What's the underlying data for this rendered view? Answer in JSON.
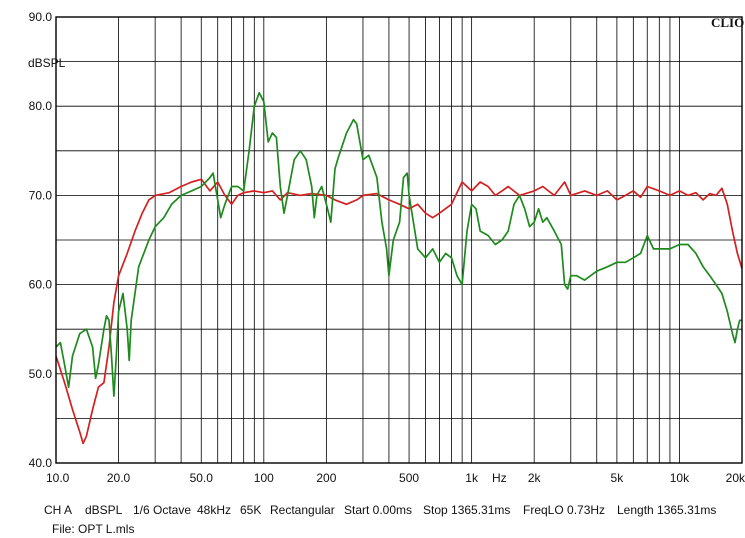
{
  "chart_data": {
    "type": "line",
    "ylabel": "dBSPL",
    "brand": "CLIO",
    "x_scale": "log",
    "xlim": [
      10,
      20000
    ],
    "ylim": [
      40,
      90
    ],
    "grid": true,
    "y_ticks": [
      {
        "value": 40,
        "label": "40.0"
      },
      {
        "value": 50,
        "label": "50.0"
      },
      {
        "value": 60,
        "label": "60.0"
      },
      {
        "value": 70,
        "label": "70.0"
      },
      {
        "value": 80,
        "label": "80.0"
      },
      {
        "value": 90,
        "label": "90.0"
      }
    ],
    "x_ticks": [
      {
        "value": 10,
        "label": "10.0"
      },
      {
        "value": 20,
        "label": "20.0"
      },
      {
        "value": 50,
        "label": "50.0"
      },
      {
        "value": 100,
        "label": "100"
      },
      {
        "value": 200,
        "label": "200"
      },
      {
        "value": 500,
        "label": "500"
      },
      {
        "value": 1000,
        "label": "1k"
      },
      {
        "value": 2000,
        "label": "2k"
      },
      {
        "value": 5000,
        "label": "5k"
      },
      {
        "value": 10000,
        "label": "10k"
      },
      {
        "value": 20000,
        "label": "20k"
      }
    ],
    "x_unit_label": "Hz",
    "series": [
      {
        "color": "#d42020",
        "points": [
          [
            10,
            52
          ],
          [
            11,
            49
          ],
          [
            12,
            46
          ],
          [
            13,
            43.5
          ],
          [
            13.5,
            42.2
          ],
          [
            14,
            43
          ],
          [
            15,
            46
          ],
          [
            16,
            48.5
          ],
          [
            17,
            49
          ],
          [
            18,
            53
          ],
          [
            19,
            58
          ],
          [
            20,
            61
          ],
          [
            22,
            63.5
          ],
          [
            24,
            66
          ],
          [
            26,
            68
          ],
          [
            28,
            69.5
          ],
          [
            30,
            70
          ],
          [
            35,
            70.3
          ],
          [
            40,
            71
          ],
          [
            45,
            71.5
          ],
          [
            50,
            71.8
          ],
          [
            55,
            70.5
          ],
          [
            60,
            71.5
          ],
          [
            65,
            70
          ],
          [
            70,
            69
          ],
          [
            75,
            70
          ],
          [
            80,
            70.3
          ],
          [
            90,
            70.5
          ],
          [
            100,
            70.3
          ],
          [
            110,
            70.5
          ],
          [
            120,
            69.5
          ],
          [
            130,
            70.3
          ],
          [
            150,
            70
          ],
          [
            170,
            70.2
          ],
          [
            200,
            70
          ],
          [
            220,
            69.5
          ],
          [
            250,
            69
          ],
          [
            280,
            69.5
          ],
          [
            300,
            70
          ],
          [
            350,
            70.2
          ],
          [
            400,
            69.5
          ],
          [
            450,
            69
          ],
          [
            500,
            68.5
          ],
          [
            550,
            69
          ],
          [
            600,
            68
          ],
          [
            650,
            67.5
          ],
          [
            700,
            68
          ],
          [
            800,
            69
          ],
          [
            900,
            71.5
          ],
          [
            1000,
            70.5
          ],
          [
            1100,
            71.5
          ],
          [
            1200,
            71
          ],
          [
            1300,
            70
          ],
          [
            1400,
            70.5
          ],
          [
            1500,
            71
          ],
          [
            1700,
            70
          ],
          [
            2000,
            70.5
          ],
          [
            2200,
            71
          ],
          [
            2500,
            70
          ],
          [
            2800,
            71.5
          ],
          [
            3000,
            70
          ],
          [
            3500,
            70.5
          ],
          [
            4000,
            70
          ],
          [
            4500,
            70.5
          ],
          [
            5000,
            69.5
          ],
          [
            5500,
            70
          ],
          [
            6000,
            70.5
          ],
          [
            6500,
            69.8
          ],
          [
            7000,
            71
          ],
          [
            8000,
            70.5
          ],
          [
            9000,
            70
          ],
          [
            10000,
            70.5
          ],
          [
            11000,
            70
          ],
          [
            12000,
            70.3
          ],
          [
            13000,
            69.5
          ],
          [
            14000,
            70.2
          ],
          [
            15000,
            70
          ],
          [
            16000,
            70.8
          ],
          [
            17000,
            69
          ],
          [
            18000,
            66
          ],
          [
            19000,
            63.5
          ],
          [
            20000,
            61.8
          ]
        ]
      },
      {
        "color": "#1e8a1e",
        "points": [
          [
            10,
            53
          ],
          [
            10.5,
            53.5
          ],
          [
            11,
            51
          ],
          [
            11.5,
            48.5
          ],
          [
            12,
            52
          ],
          [
            13,
            54.5
          ],
          [
            14,
            55
          ],
          [
            15,
            53
          ],
          [
            15.5,
            49.5
          ],
          [
            16,
            51
          ],
          [
            17,
            55
          ],
          [
            17.5,
            56.5
          ],
          [
            18,
            56
          ],
          [
            18.5,
            52
          ],
          [
            19,
            47.5
          ],
          [
            19.5,
            52
          ],
          [
            20,
            57
          ],
          [
            21,
            59
          ],
          [
            22,
            55
          ],
          [
            22.5,
            51.5
          ],
          [
            23,
            56
          ],
          [
            25,
            62
          ],
          [
            28,
            65
          ],
          [
            30,
            66.5
          ],
          [
            33,
            67.5
          ],
          [
            36,
            69
          ],
          [
            40,
            70
          ],
          [
            45,
            70.5
          ],
          [
            50,
            71
          ],
          [
            55,
            72
          ],
          [
            57,
            72.5
          ],
          [
            60,
            69.5
          ],
          [
            62,
            67.5
          ],
          [
            65,
            69
          ],
          [
            70,
            71
          ],
          [
            75,
            71
          ],
          [
            80,
            70.5
          ],
          [
            85,
            75
          ],
          [
            90,
            80
          ],
          [
            95,
            81.5
          ],
          [
            100,
            80.5
          ],
          [
            105,
            76
          ],
          [
            110,
            77
          ],
          [
            115,
            76.5
          ],
          [
            120,
            71
          ],
          [
            125,
            68
          ],
          [
            130,
            70
          ],
          [
            140,
            74
          ],
          [
            150,
            75
          ],
          [
            160,
            74
          ],
          [
            170,
            71
          ],
          [
            175,
            67.5
          ],
          [
            180,
            70
          ],
          [
            190,
            71
          ],
          [
            200,
            69
          ],
          [
            210,
            67
          ],
          [
            220,
            73
          ],
          [
            230,
            74.5
          ],
          [
            250,
            77
          ],
          [
            270,
            78.5
          ],
          [
            280,
            78
          ],
          [
            300,
            74
          ],
          [
            320,
            74.5
          ],
          [
            350,
            72
          ],
          [
            370,
            67
          ],
          [
            390,
            64
          ],
          [
            400,
            61
          ],
          [
            420,
            65
          ],
          [
            450,
            67
          ],
          [
            470,
            72
          ],
          [
            490,
            72.5
          ],
          [
            500,
            70
          ],
          [
            550,
            64
          ],
          [
            600,
            63
          ],
          [
            650,
            64
          ],
          [
            700,
            62.5
          ],
          [
            750,
            63.5
          ],
          [
            800,
            63
          ],
          [
            850,
            61
          ],
          [
            900,
            60
          ],
          [
            950,
            66
          ],
          [
            1000,
            69
          ],
          [
            1050,
            68.5
          ],
          [
            1100,
            66
          ],
          [
            1200,
            65.5
          ],
          [
            1300,
            64.5
          ],
          [
            1400,
            65
          ],
          [
            1500,
            66
          ],
          [
            1600,
            69
          ],
          [
            1700,
            70
          ],
          [
            1800,
            68.5
          ],
          [
            1900,
            66.5
          ],
          [
            2000,
            67
          ],
          [
            2100,
            68.5
          ],
          [
            2200,
            67
          ],
          [
            2300,
            67.5
          ],
          [
            2500,
            66
          ],
          [
            2700,
            64.5
          ],
          [
            2800,
            60
          ],
          [
            2900,
            59.5
          ],
          [
            3000,
            61
          ],
          [
            3200,
            61
          ],
          [
            3500,
            60.5
          ],
          [
            4000,
            61.5
          ],
          [
            4500,
            62
          ],
          [
            5000,
            62.5
          ],
          [
            5500,
            62.5
          ],
          [
            6000,
            63
          ],
          [
            6500,
            63.5
          ],
          [
            7000,
            65.5
          ],
          [
            7500,
            64
          ],
          [
            8000,
            64
          ],
          [
            9000,
            64
          ],
          [
            10000,
            64.5
          ],
          [
            11000,
            64.5
          ],
          [
            12000,
            63.5
          ],
          [
            13000,
            62
          ],
          [
            14000,
            61
          ],
          [
            15000,
            60
          ],
          [
            16000,
            59
          ],
          [
            17000,
            57
          ],
          [
            18000,
            54.5
          ],
          [
            18500,
            53.5
          ],
          [
            19000,
            55
          ],
          [
            19500,
            56
          ],
          [
            20000,
            56
          ]
        ]
      }
    ]
  },
  "footer": {
    "info_items": [
      "CH A",
      "dBSPL",
      "1/6 Octave",
      "48kHz",
      "65K",
      "Rectangular",
      "Start 0.00ms",
      "Stop 1365.31ms",
      "FreqLO 0.73Hz",
      "Length 1365.31ms"
    ],
    "file_label": "File: OPT L.mls"
  }
}
